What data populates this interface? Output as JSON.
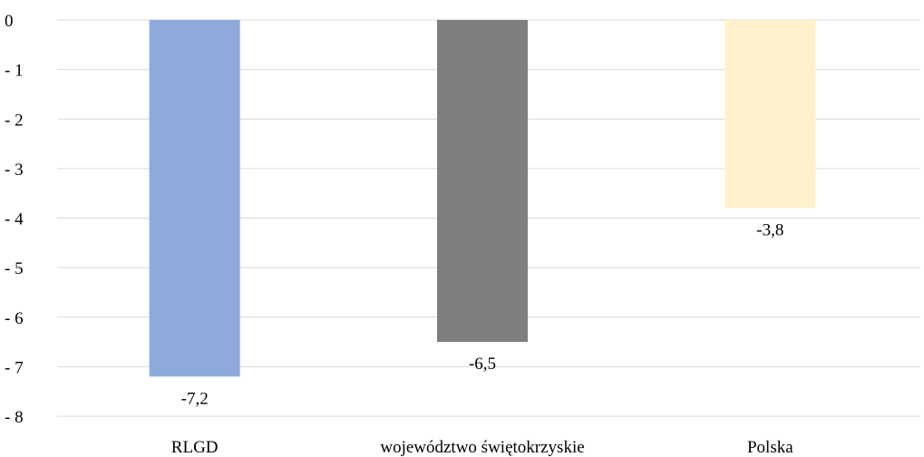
{
  "chart_data": {
    "type": "bar",
    "categories": [
      "RLGD",
      "województwo świętokrzyskie",
      "Polska"
    ],
    "values": [
      -7.2,
      -6.5,
      -3.8
    ],
    "data_labels": [
      "-7,2",
      "-6,5",
      "-3,8"
    ],
    "colors": [
      "#8eaadb",
      "#7f7f7f",
      "#fff2cc"
    ],
    "ylim": [
      -8,
      0
    ],
    "yticks": [
      0,
      -1,
      -2,
      -3,
      -4,
      -5,
      -6,
      -7,
      -8
    ],
    "ytick_labels": [
      "0",
      "- 1",
      "- 2",
      "- 3",
      "- 4",
      "- 5",
      "- 6",
      "- 7",
      "- 8"
    ],
    "grid": true,
    "gridline_color": "#d9d9d9",
    "title": "",
    "xlabel": "",
    "ylabel": ""
  }
}
